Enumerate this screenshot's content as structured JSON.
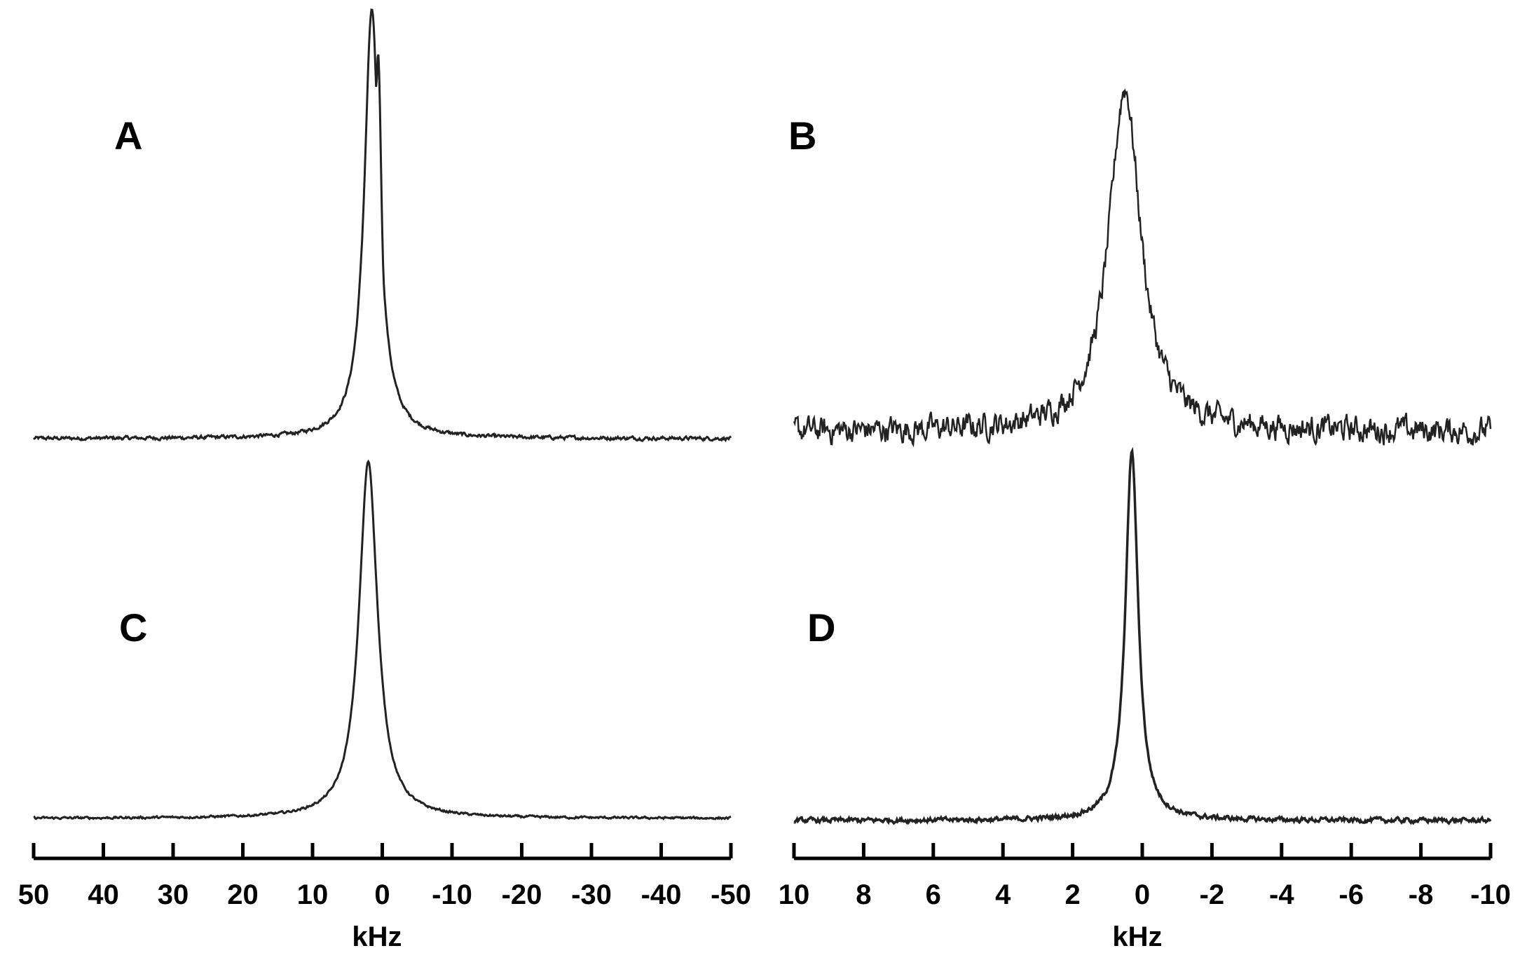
{
  "chart_data": [
    {
      "type": "line",
      "panel_label": "A",
      "xlabel": "kHz",
      "xlim": [
        50,
        -50
      ],
      "x_ticks": [
        50,
        40,
        30,
        20,
        10,
        0,
        -10,
        -20,
        -30,
        -40,
        -50
      ],
      "tick_labels": [
        "50",
        "40",
        "30",
        "20",
        "10",
        "0",
        "-10",
        "-20",
        "-30",
        "-40",
        "-50"
      ],
      "series": [
        {
          "peak_position": 1.5,
          "half_width": 1.3,
          "shoulder_position": 0.6,
          "shoulder_height": 0.9,
          "noise_level": 0.002,
          "values": []
        }
      ]
    },
    {
      "type": "line",
      "panel_label": "B",
      "xlabel": "kHz",
      "xlim": [
        10,
        -10
      ],
      "x_ticks": [
        10,
        8,
        6,
        4,
        2,
        0,
        -2,
        -4,
        -6,
        -8,
        -10
      ],
      "tick_labels": [
        "10",
        "8",
        "6",
        "4",
        "2",
        "0",
        "-2",
        "-4",
        "-6",
        "-8",
        "-10"
      ],
      "series": [
        {
          "peak_position": 0.5,
          "half_width": 0.55,
          "noise_level": 0.018,
          "values": []
        }
      ]
    },
    {
      "type": "line",
      "panel_label": "C",
      "xlabel": "kHz",
      "xlim": [
        50,
        -50
      ],
      "x_ticks": [
        50,
        40,
        30,
        20,
        10,
        0,
        -10,
        -20,
        -30,
        -40,
        -50
      ],
      "tick_labels": [
        "50",
        "40",
        "30",
        "20",
        "10",
        "0",
        "-10",
        "-20",
        "-30",
        "-40",
        "-50"
      ],
      "series": [
        {
          "peak_position": 2.0,
          "half_width": 1.6,
          "noise_level": 0.0015,
          "values": []
        }
      ]
    },
    {
      "type": "line",
      "panel_label": "D",
      "xlabel": "kHz",
      "xlim": [
        10,
        -10
      ],
      "x_ticks": [
        10,
        8,
        6,
        4,
        2,
        0,
        -2,
        -4,
        -6,
        -8,
        -10
      ],
      "tick_labels": [
        "10",
        "8",
        "6",
        "4",
        "2",
        "0",
        "-2",
        "-4",
        "-6",
        "-8",
        "-10"
      ],
      "series": [
        {
          "peak_position": 0.3,
          "half_width": 0.22,
          "noise_level": 0.003,
          "values": []
        }
      ]
    }
  ],
  "colors": {
    "trace": "#222222",
    "axis": "#000000",
    "background": "#ffffff"
  }
}
